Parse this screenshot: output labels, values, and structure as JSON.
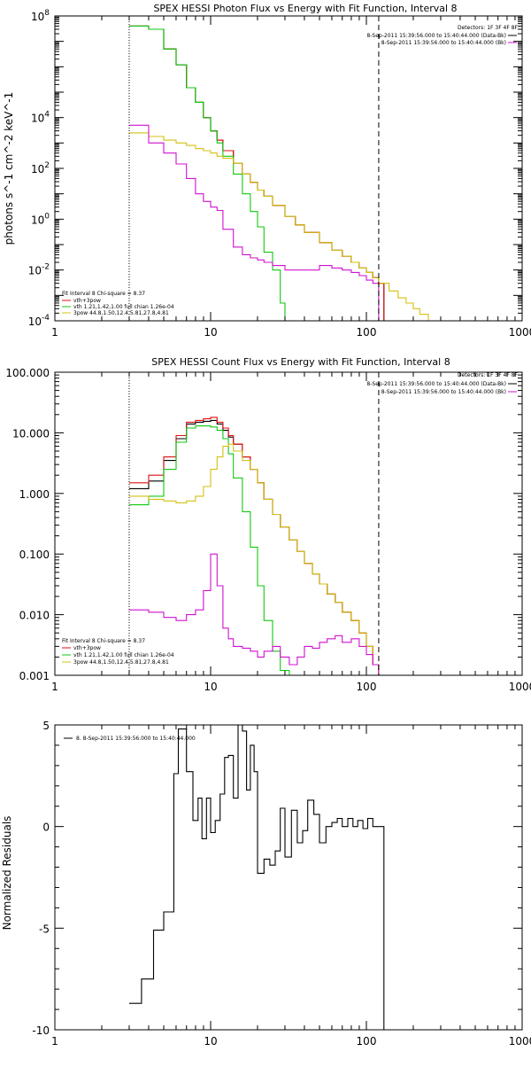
{
  "chart_data": [
    {
      "type": "line",
      "title": "SPEX HESSI Photon Flux vs Energy with Fit Function, Interval 8",
      "ylabel": "photons s^-1 cm^-2 keV^-1",
      "xlabel": "",
      "x_scale": "log",
      "y_scale": "log",
      "xlim": [
        1,
        1000
      ],
      "ylim": [
        0.0001,
        100000000
      ],
      "x_ticks": [
        "1",
        "10",
        "100",
        "1000"
      ],
      "y_ticks": [
        "10^-4",
        "10^-2",
        "10^0",
        "10^2",
        "10^4",
        "10^8"
      ],
      "info": [
        "Detectors: 1F 3F 4F 8F",
        "8-Sep-2011 15:39:56.000 to 15:40:44.000 (Data-Bk)",
        "8-Sep-2011 15:39:56.000 to 15:40:44.000 (Bk)"
      ],
      "fit_legend": {
        "header": "Fit Interval 8   Chi-square = 8.37",
        "entries": [
          "vth+3pow",
          "vth 1.21,1.42,1.00  full chian 1.26e-04",
          "3pow 44.8,1.50,12.4,5.81,27.8,4.81"
        ]
      },
      "vlines": [
        {
          "x": 3,
          "style": "dotted"
        },
        {
          "x": 120,
          "style": "dashed"
        }
      ],
      "series": [
        {
          "color": "#000000",
          "x": [
            3,
            4,
            5,
            6,
            7,
            8,
            9,
            10,
            11,
            12,
            14,
            16,
            18,
            20,
            22,
            25,
            30,
            35,
            40,
            50,
            60,
            70,
            80,
            90,
            100,
            110,
            120
          ],
          "values": [
            40000000,
            30000000,
            5000000,
            1200000,
            150000,
            40000,
            10000,
            3000,
            1300,
            500,
            160,
            60,
            28,
            14,
            8,
            3.5,
            1.3,
            0.6,
            0.3,
            0.12,
            0.06,
            0.035,
            0.02,
            0.012,
            0.008,
            0.005,
            0.003
          ]
        },
        {
          "color": "#e01010",
          "x": [
            3,
            4,
            5,
            6,
            7,
            8,
            9,
            10,
            11,
            12,
            14,
            16,
            18,
            20,
            22,
            25,
            30,
            35,
            40,
            50,
            60,
            70,
            80,
            90,
            100,
            110,
            120
          ],
          "values": [
            40000000,
            30000000,
            5000000,
            1200000,
            150000,
            40000,
            10000,
            3000,
            1300,
            500,
            160,
            60,
            28,
            14,
            8,
            3.5,
            1.3,
            0.6,
            0.3,
            0.12,
            0.06,
            0.035,
            0.02,
            0.012,
            0.008,
            0.005,
            0.003
          ]
        },
        {
          "color": "#10c810",
          "x": [
            3,
            4,
            5,
            6,
            7,
            8,
            9,
            10,
            11,
            12,
            14,
            16,
            18,
            20,
            22,
            25,
            28,
            30
          ],
          "values": [
            40000000,
            30000000,
            5000000,
            1200000,
            150000,
            40000,
            10000,
            3000,
            1000,
            300,
            60,
            10,
            2,
            0.5,
            0.05,
            0.01,
            0.0005,
            0.0001
          ]
        },
        {
          "color": "#d4c010",
          "x": [
            3,
            4,
            5,
            6,
            7,
            8,
            9,
            10,
            11,
            12,
            14,
            16,
            18,
            20,
            22,
            25,
            30,
            35,
            40,
            50,
            60,
            70,
            80,
            90,
            100,
            110,
            120,
            140,
            160,
            180,
            200,
            220,
            250
          ],
          "values": [
            2500,
            1800,
            1300,
            1000,
            800,
            600,
            500,
            400,
            300,
            250,
            160,
            60,
            28,
            14,
            8,
            3.5,
            1.3,
            0.6,
            0.3,
            0.12,
            0.06,
            0.035,
            0.02,
            0.012,
            0.008,
            0.005,
            0.003,
            0.0015,
            0.0008,
            0.0005,
            0.0003,
            0.00018,
            0.0001
          ]
        },
        {
          "color": "#d010d0",
          "x": [
            3,
            4,
            5,
            6,
            7,
            8,
            9,
            10,
            11,
            12,
            14,
            16,
            18,
            20,
            22,
            25,
            30,
            35,
            40,
            50,
            60,
            70,
            80,
            90,
            100,
            110,
            120
          ],
          "values": [
            5000,
            1000,
            400,
            150,
            40,
            10,
            5,
            3,
            2.2,
            0.4,
            0.08,
            0.04,
            0.03,
            0.025,
            0.02,
            0.015,
            0.01,
            0.01,
            0.01,
            0.015,
            0.012,
            0.01,
            0.008,
            0.006,
            0.004,
            0.003,
            0.0001
          ]
        }
      ]
    },
    {
      "type": "line",
      "title": "SPEX HESSI Count Flux vs Energy with Fit Function, Interval 8",
      "xlabel": "",
      "ylabel": "",
      "x_scale": "log",
      "y_scale": "log",
      "xlim": [
        1,
        1000
      ],
      "ylim": [
        0.001,
        100
      ],
      "x_ticks": [
        "1",
        "10",
        "100",
        "1000"
      ],
      "y_ticks": [
        "0.001",
        "0.010",
        "0.100",
        "1.000",
        "10.000",
        "100.000"
      ],
      "info": [
        "Detectors: 1F 3F 4F 8F",
        "8-Sep-2011 15:39:56.000 to 15:40:44.000 (Data-Bk)",
        "8-Sep-2011 15:39:56.000 to 15:40:44.000 (Bk)"
      ],
      "fit_legend": {
        "header": "Fit Interval 8   Chi-square = 8.37",
        "entries": [
          "vth+3pow",
          "vth 1.21,1.42,1.00  full chian 1.26e-04",
          "3pow 44.8,1.50,12.4,5.81,27.8,4.81"
        ]
      },
      "vlines": [
        {
          "x": 3,
          "style": "dotted"
        },
        {
          "x": 120,
          "style": "dashed"
        }
      ],
      "series": [
        {
          "color": "#000000",
          "x": [
            3,
            4,
            5,
            6,
            7,
            8,
            9,
            10,
            11,
            12,
            13,
            14,
            16,
            18,
            20,
            22,
            25,
            28,
            32,
            36,
            40,
            45,
            50,
            56,
            63,
            70,
            80,
            90,
            100,
            110,
            120
          ],
          "values": [
            1.2,
            1.6,
            3.5,
            8,
            14,
            15,
            15.5,
            16,
            14,
            11,
            8.5,
            6.5,
            4,
            2.5,
            1.5,
            0.8,
            0.45,
            0.28,
            0.17,
            0.11,
            0.07,
            0.047,
            0.032,
            0.022,
            0.016,
            0.011,
            0.008,
            0.005,
            0.003,
            0.0015,
            0.001
          ]
        },
        {
          "color": "#e01010",
          "x": [
            3,
            4,
            5,
            6,
            7,
            8,
            9,
            10,
            11,
            12,
            13,
            14,
            16,
            18,
            20,
            22,
            25,
            28,
            32,
            36,
            40,
            45,
            50,
            56,
            63,
            70,
            80,
            90,
            100,
            110,
            120
          ],
          "values": [
            1.5,
            2,
            4,
            9,
            15,
            16,
            17,
            18,
            15,
            12,
            9,
            6.5,
            4,
            2.5,
            1.5,
            0.8,
            0.45,
            0.28,
            0.17,
            0.11,
            0.07,
            0.047,
            0.032,
            0.022,
            0.016,
            0.011,
            0.008,
            0.005,
            0.003,
            0.0015,
            0.001
          ]
        },
        {
          "color": "#10c810",
          "x": [
            3,
            4,
            5,
            6,
            7,
            8,
            9,
            10,
            11,
            12,
            13,
            14,
            16,
            18,
            20,
            22,
            25,
            28,
            32
          ],
          "values": [
            0.65,
            0.9,
            2.5,
            7,
            12,
            13,
            13,
            12.5,
            11,
            8,
            4.5,
            1.8,
            0.5,
            0.13,
            0.03,
            0.008,
            0.0025,
            0.0012,
            0.001
          ]
        },
        {
          "color": "#d4c010",
          "x": [
            3,
            4,
            5,
            6,
            7,
            8,
            9,
            10,
            11,
            12,
            13,
            14,
            16,
            18,
            20,
            22,
            25,
            28,
            32,
            36,
            40,
            45,
            50,
            56,
            63,
            70,
            80,
            90,
            100,
            110,
            120
          ],
          "values": [
            0.9,
            0.8,
            0.75,
            0.7,
            0.75,
            0.9,
            1.3,
            2.5,
            4,
            6,
            6.5,
            5,
            3.5,
            2.5,
            1.5,
            0.8,
            0.45,
            0.28,
            0.17,
            0.11,
            0.07,
            0.047,
            0.032,
            0.022,
            0.016,
            0.011,
            0.008,
            0.005,
            0.003,
            0.0015,
            0.001
          ]
        },
        {
          "color": "#d010d0",
          "x": [
            3,
            4,
            5,
            6,
            7,
            8,
            9,
            10,
            11,
            12,
            13,
            14,
            16,
            18,
            20,
            22,
            25,
            28,
            32,
            36,
            40,
            45,
            50,
            56,
            63,
            70,
            80,
            90,
            100,
            110,
            120
          ],
          "values": [
            0.012,
            0.011,
            0.009,
            0.008,
            0.01,
            0.012,
            0.025,
            0.1,
            0.03,
            0.006,
            0.004,
            0.003,
            0.0028,
            0.0025,
            0.002,
            0.0025,
            0.003,
            0.002,
            0.0015,
            0.002,
            0.003,
            0.0028,
            0.0035,
            0.004,
            0.0045,
            0.0035,
            0.004,
            0.003,
            0.0022,
            0.0015,
            0.001
          ]
        }
      ]
    },
    {
      "type": "line",
      "title": "",
      "ylabel": "Normalized Residuals",
      "xlabel": "",
      "x_scale": "log",
      "y_scale": "linear",
      "xlim": [
        1,
        1000
      ],
      "ylim": [
        -10,
        5
      ],
      "x_ticks": [
        "1",
        "10",
        "100",
        "1000"
      ],
      "y_ticks": [
        "-10",
        "-5",
        "0",
        "5"
      ],
      "legend": "8. 8-Sep-2011 15:39:56.000 to 15:40:44.000",
      "series": [
        {
          "color": "#000000",
          "x": [
            3,
            3.6,
            4.3,
            5,
            5.8,
            6.2,
            7,
            7.7,
            8.3,
            8.8,
            9.4,
            10,
            10.7,
            11.5,
            12.3,
            13,
            14,
            15,
            16,
            17,
            18,
            19,
            20,
            22,
            24,
            26,
            28,
            30,
            33,
            36,
            39,
            42,
            46,
            50,
            55,
            60,
            65,
            70,
            76,
            82,
            88,
            95,
            102,
            110,
            120
          ],
          "values": [
            -8.7,
            -7.5,
            -5.1,
            -4.2,
            2.6,
            4.8,
            2.7,
            0.3,
            1.4,
            -0.6,
            1.4,
            -0.3,
            0.3,
            1.6,
            3.4,
            3.5,
            1.4,
            5,
            4.7,
            1.8,
            4,
            2.7,
            -2.3,
            -1.6,
            -1.9,
            -1.2,
            0.9,
            -1.5,
            0.8,
            -0.8,
            -0.2,
            1.3,
            0.6,
            -0.8,
            0,
            0.2,
            0.4,
            0,
            0.4,
            0,
            0.3,
            -0.1,
            0.4,
            0,
            0
          ]
        }
      ]
    }
  ]
}
